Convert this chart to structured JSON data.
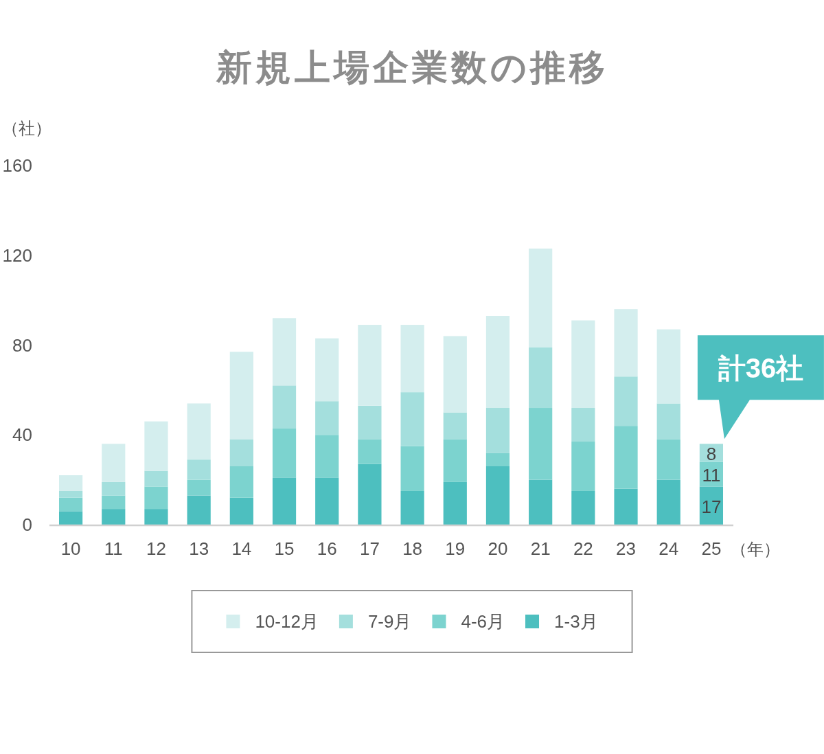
{
  "chart_data": {
    "type": "bar",
    "title": "新規上場企業数の推移",
    "ylabel": "（社）",
    "xlabel": "（年）",
    "categories": [
      "10",
      "11",
      "12",
      "13",
      "14",
      "15",
      "16",
      "17",
      "18",
      "19",
      "20",
      "21",
      "22",
      "23",
      "24",
      "25"
    ],
    "stacked": true,
    "ylim": [
      0,
      160
    ],
    "yticks": [
      0,
      40,
      80,
      120,
      160
    ],
    "legend": "bottom",
    "series": [
      {
        "name": "1-3月",
        "color": "#4dbfbf",
        "values": [
          6,
          7,
          7,
          13,
          12,
          21,
          21,
          27,
          15,
          19,
          26,
          20,
          15,
          16,
          20,
          17
        ],
        "value_labels": [
          null,
          null,
          null,
          null,
          null,
          null,
          null,
          null,
          null,
          null,
          null,
          null,
          null,
          null,
          null,
          "17"
        ]
      },
      {
        "name": "4-6月",
        "color": "#7cd3cf",
        "values": [
          6,
          6,
          10,
          7,
          14,
          22,
          19,
          11,
          20,
          19,
          6,
          32,
          22,
          28,
          18,
          11
        ],
        "value_labels": [
          null,
          null,
          null,
          null,
          null,
          null,
          null,
          null,
          null,
          null,
          null,
          null,
          null,
          null,
          null,
          "11"
        ]
      },
      {
        "name": "7-9月",
        "color": "#a4dfdd",
        "values": [
          3,
          6,
          7,
          9,
          12,
          19,
          15,
          15,
          24,
          12,
          20,
          27,
          15,
          22,
          16,
          8
        ],
        "value_labels": [
          null,
          null,
          null,
          null,
          null,
          null,
          null,
          null,
          null,
          null,
          null,
          null,
          null,
          null,
          null,
          "8"
        ]
      },
      {
        "name": "10-12月",
        "color": "#d4eeee",
        "values": [
          7,
          17,
          22,
          25,
          39,
          30,
          28,
          36,
          30,
          34,
          41,
          44,
          39,
          30,
          33,
          null
        ]
      }
    ],
    "annotations": [
      {
        "text": "計36社",
        "x": "25",
        "y": 36
      }
    ]
  }
}
